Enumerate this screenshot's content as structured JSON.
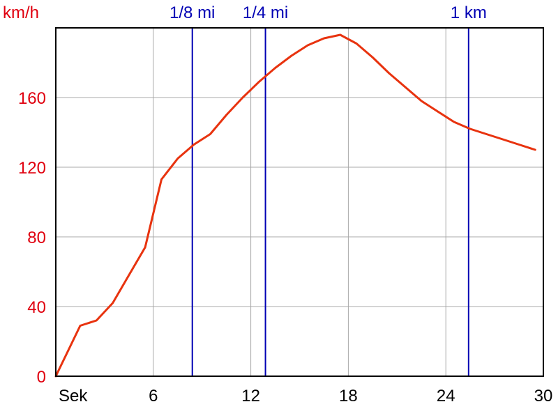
{
  "chart_data": {
    "type": "line",
    "title": "",
    "ylabel": "km/h",
    "xlabel": "Sek",
    "xlim": [
      0,
      30
    ],
    "ylim": [
      0,
      200
    ],
    "grid": true,
    "x_ticks": [
      {
        "value": 6,
        "label": "6"
      },
      {
        "value": 12,
        "label": "12"
      },
      {
        "value": 18,
        "label": "18"
      },
      {
        "value": 24,
        "label": "24"
      },
      {
        "value": 30,
        "label": "30"
      }
    ],
    "y_ticks": [
      {
        "value": 0,
        "label": "0"
      },
      {
        "value": 40,
        "label": "40"
      },
      {
        "value": 80,
        "label": "80"
      },
      {
        "value": 120,
        "label": "120"
      },
      {
        "value": 160,
        "label": "160"
      }
    ],
    "markers": [
      {
        "x": 8.4,
        "label": "1/8 mi"
      },
      {
        "x": 12.9,
        "label": "1/4 mi"
      },
      {
        "x": 25.4,
        "label": "1 km"
      }
    ],
    "series": [
      {
        "x": [
          0,
          1.5,
          2.5,
          3.5,
          4.5,
          5.5,
          6.5,
          7.5,
          8.5,
          9.5,
          10.5,
          11.5,
          12.5,
          13.5,
          14.5,
          15.5,
          16.5,
          17.5,
          18.5,
          19.5,
          20.5,
          21.5,
          22.5,
          23.5,
          24.5,
          25.5,
          26.5,
          27.5,
          28.5,
          29.5
        ],
        "y": [
          0,
          29,
          32,
          42,
          58,
          74,
          113,
          125,
          133,
          139,
          150,
          160,
          169,
          177,
          184,
          190,
          194,
          196,
          191,
          183,
          174,
          166,
          158,
          152,
          146,
          142,
          139,
          136,
          133,
          130
        ]
      }
    ],
    "colors": {
      "line": "#e8330f",
      "axis_text": "#e0000f",
      "marker": "#0000b4",
      "grid": "#a8a8a8",
      "frame": "#000000"
    }
  }
}
